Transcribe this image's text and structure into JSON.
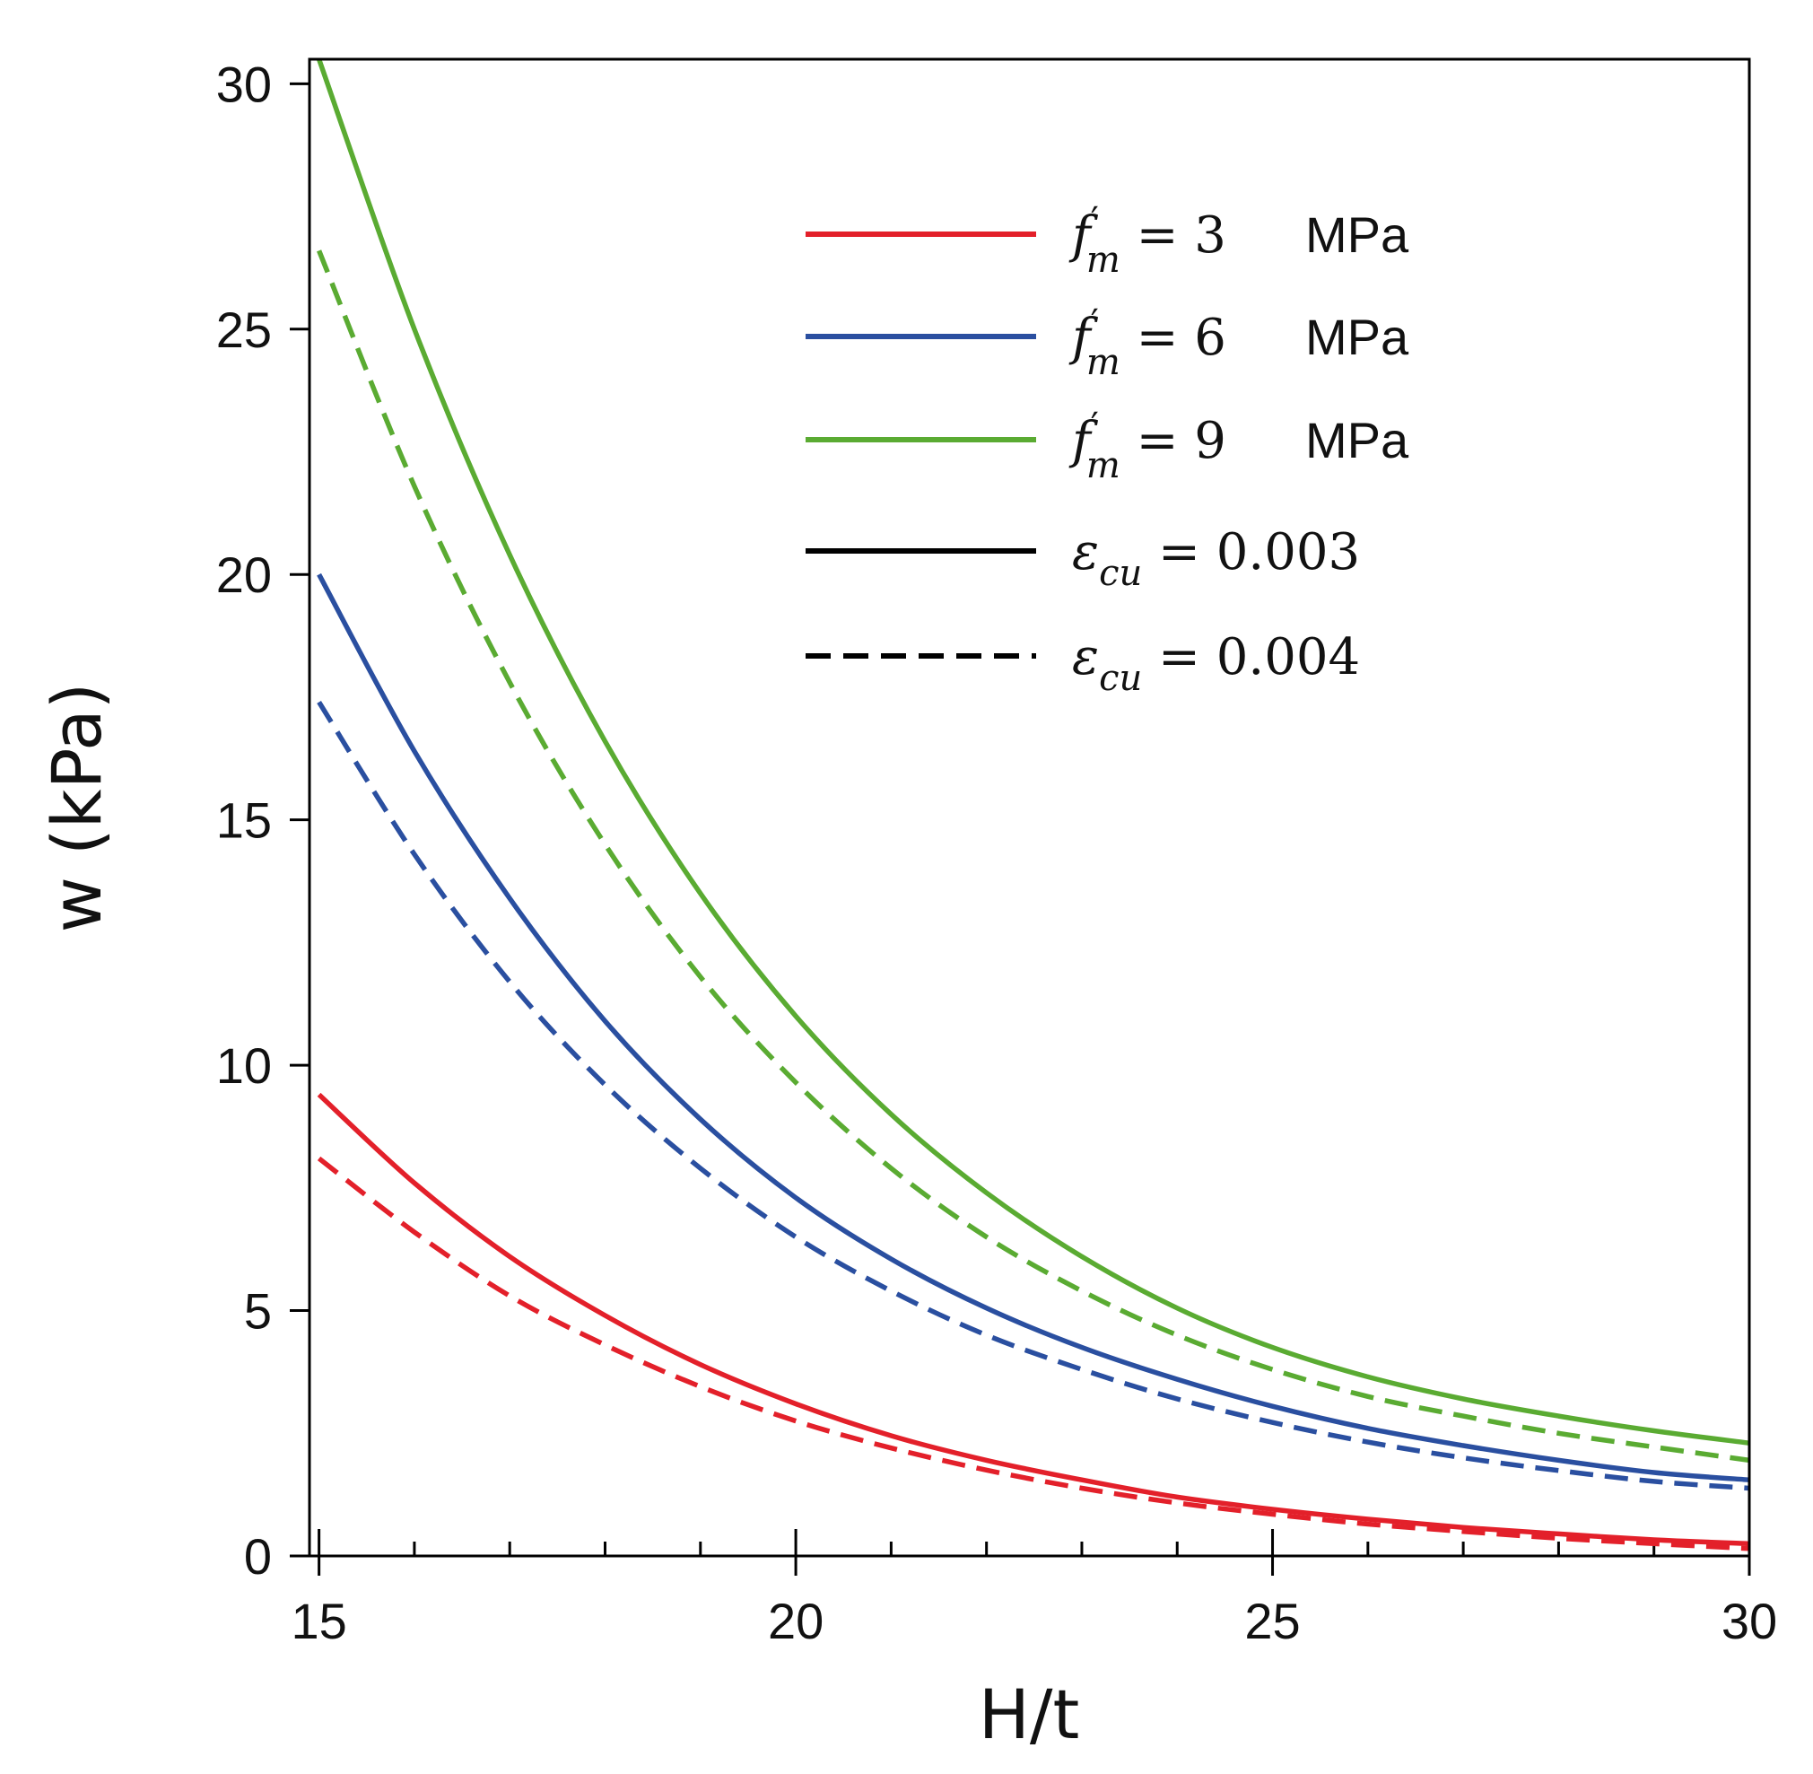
{
  "chart_data": {
    "type": "line",
    "title": "",
    "xlabel": "H/t",
    "ylabel": "w  (kPa)",
    "xlim": [
      14.9,
      30
    ],
    "ylim": [
      0,
      30.5
    ],
    "xticks": [
      15,
      20,
      25,
      30
    ],
    "yticks": [
      0,
      5,
      10,
      15,
      20,
      25,
      30
    ],
    "x_minor_step": 1,
    "legend_position": "top-right",
    "legend": [
      {
        "label": "f′m = 3",
        "math_base": "f",
        "math_sub": "m",
        "math_rhs": " = 3",
        "unit": "MPa",
        "color": "#e3202a",
        "dash": "solid"
      },
      {
        "label": "f′m = 6",
        "math_base": "f",
        "math_sub": "m",
        "math_rhs": " = 6",
        "unit": "MPa",
        "color": "#2a4fa0",
        "dash": "solid"
      },
      {
        "label": "f′m = 9",
        "math_base": "f",
        "math_sub": "m",
        "math_rhs": " = 9",
        "unit": "MPa",
        "color": "#5aab32",
        "dash": "solid"
      },
      {
        "label": "εcu = 0.003",
        "math_base": "ε",
        "math_sub": "cu",
        "math_rhs": " = 0.003",
        "unit": "",
        "color": "#000000",
        "dash": "solid"
      },
      {
        "label": "εcu = 0.004",
        "math_base": "ε",
        "math_sub": "cu",
        "math_rhs": " = 0.004",
        "unit": "",
        "color": "#000000",
        "dash": "dashed"
      }
    ],
    "x": [
      15,
      16,
      17,
      18,
      19,
      20,
      21,
      22,
      23,
      24,
      25,
      26,
      27,
      28,
      29,
      30
    ],
    "series": [
      {
        "name": "f′m = 3 MPa, εcu = 0.003",
        "color": "#e3202a",
        "dash": "solid",
        "values": [
          9.4,
          7.6,
          6.1,
          4.9,
          3.9,
          3.1,
          2.45,
          1.95,
          1.55,
          1.2,
          0.95,
          0.75,
          0.58,
          0.45,
          0.33,
          0.25
        ]
      },
      {
        "name": "f′m = 3 MPa, εcu = 0.004",
        "color": "#e3202a",
        "dash": "dashed",
        "values": [
          8.1,
          6.6,
          5.3,
          4.3,
          3.45,
          2.75,
          2.2,
          1.75,
          1.38,
          1.08,
          0.85,
          0.65,
          0.5,
          0.36,
          0.25,
          0.15
        ]
      },
      {
        "name": "f′m = 6 MPa, εcu = 0.003",
        "color": "#2a4fa0",
        "dash": "solid",
        "values": [
          20.0,
          16.4,
          13.4,
          10.9,
          8.9,
          7.3,
          6.05,
          5.05,
          4.25,
          3.6,
          3.05,
          2.6,
          2.25,
          1.95,
          1.7,
          1.55
        ]
      },
      {
        "name": "f′m = 6 MPa, εcu = 0.004",
        "color": "#2a4fa0",
        "dash": "dashed",
        "values": [
          17.4,
          14.3,
          11.7,
          9.6,
          7.9,
          6.5,
          5.4,
          4.5,
          3.8,
          3.2,
          2.72,
          2.32,
          2.0,
          1.74,
          1.52,
          1.38
        ]
      },
      {
        "name": "f′m = 9 MPa, εcu = 0.003",
        "color": "#5aab32",
        "dash": "solid",
        "values": [
          30.5,
          25.0,
          20.4,
          16.6,
          13.5,
          11.0,
          9.0,
          7.4,
          6.1,
          5.05,
          4.25,
          3.65,
          3.2,
          2.85,
          2.55,
          2.3
        ]
      },
      {
        "name": "f′m = 9 MPa, εcu = 0.004",
        "color": "#5aab32",
        "dash": "dashed",
        "values": [
          26.6,
          21.8,
          17.8,
          14.5,
          11.8,
          9.65,
          7.9,
          6.5,
          5.4,
          4.5,
          3.8,
          3.25,
          2.85,
          2.5,
          2.22,
          1.95
        ]
      }
    ]
  }
}
